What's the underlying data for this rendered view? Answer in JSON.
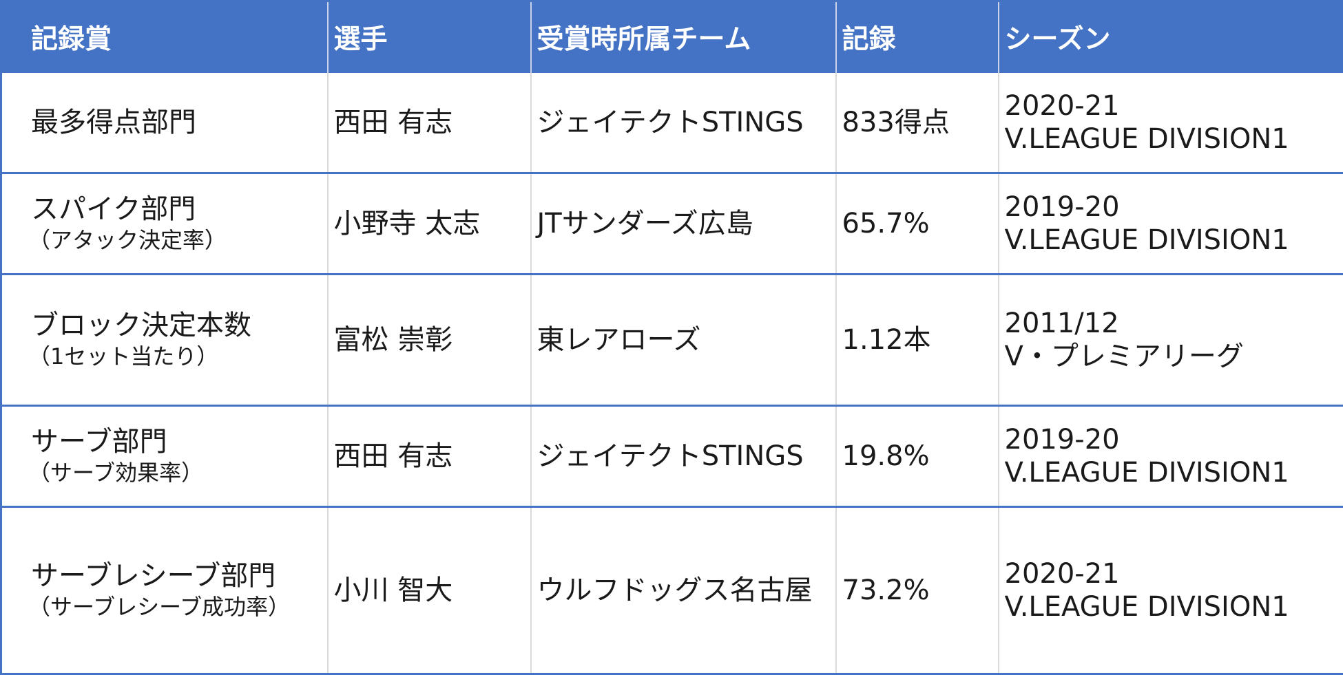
{
  "colors": {
    "header_background": "#4472c4",
    "header_text": "#ffffff",
    "row_border": "#4472c4",
    "column_divider": "#d9d9d9"
  },
  "table": {
    "columns": [
      "記録賞",
      "選手",
      "受賞時所属チーム",
      "記録",
      "シーズン"
    ],
    "rows": [
      {
        "award": "最多得点部門",
        "award_note": "",
        "player": "西田 有志",
        "team": "ジェイテクトSTINGS",
        "record": "833得点",
        "season_line1": "2020-21",
        "season_line2": "V.LEAGUE DIVISION1"
      },
      {
        "award": "スパイク部門",
        "award_note": "（アタック決定率）",
        "player": "小野寺 太志",
        "team": "JTサンダーズ広島",
        "record": "65.7%",
        "season_line1": "2019-20",
        "season_line2": "V.LEAGUE DIVISION1"
      },
      {
        "award": "ブロック決定本数",
        "award_note": "（1セット当たり）",
        "player": "富松 崇彰",
        "team": "東レアローズ",
        "record": "1.12本",
        "season_line1": "2011/12",
        "season_line2": "V・プレミアリーグ"
      },
      {
        "award": "サーブ部門",
        "award_note": "（サーブ効果率）",
        "player": "西田 有志",
        "team": "ジェイテクトSTINGS",
        "record": "19.8%",
        "season_line1": "2019-20",
        "season_line2": "V.LEAGUE DIVISION1"
      },
      {
        "award": "サーブレシーブ部門",
        "award_note": "（サーブレシーブ成功率）",
        "player": "小川 智大",
        "team": "ウルフドッグス名古屋",
        "record": "73.2%",
        "season_line1": "2020-21",
        "season_line2": "V.LEAGUE DIVISION1"
      }
    ]
  }
}
